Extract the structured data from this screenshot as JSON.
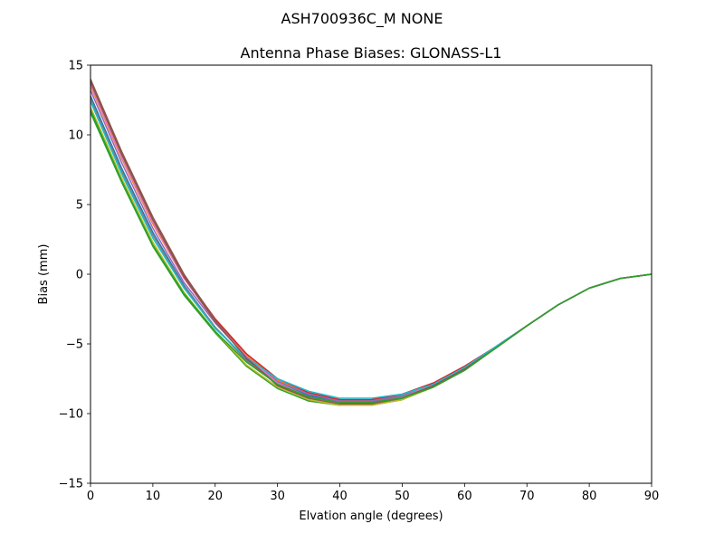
{
  "suptitle": "ASH700936C_M    NONE",
  "chart_data": {
    "type": "line",
    "title": "Antenna Phase Biases: GLONASS-L1",
    "xlabel": "Elvation angle (degrees)",
    "ylabel": "Bias (mm)",
    "xlim": [
      0,
      90
    ],
    "ylim": [
      -15,
      15
    ],
    "xticks": [
      0,
      10,
      20,
      30,
      40,
      50,
      60,
      70,
      80,
      90
    ],
    "yticks": [
      -15,
      -10,
      -5,
      0,
      5,
      10,
      15
    ],
    "xtick_labels": [
      "0",
      "10",
      "20",
      "30",
      "40",
      "50",
      "60",
      "70",
      "80",
      "90"
    ],
    "ytick_labels": [
      "−15",
      "−10",
      "−5",
      "0",
      "5",
      "10",
      "15"
    ],
    "grid": false,
    "x": [
      0,
      5,
      10,
      15,
      20,
      25,
      30,
      35,
      40,
      45,
      50,
      55,
      60,
      65,
      70,
      75,
      80,
      85,
      90
    ],
    "series": [
      {
        "color": "#1f77b4",
        "values": [
          12.8,
          7.6,
          3.0,
          -0.8,
          -3.8,
          -6.1,
          -7.8,
          -8.7,
          -9.1,
          -9.1,
          -8.8,
          -8.0,
          -6.8,
          -5.3,
          -3.7,
          -2.2,
          -1.0,
          -0.3,
          0.0
        ]
      },
      {
        "color": "#ff7f0e",
        "values": [
          13.5,
          8.3,
          3.6,
          -0.3,
          -3.3,
          -5.8,
          -7.6,
          -8.6,
          -9.0,
          -9.0,
          -8.7,
          -7.9,
          -6.7,
          -5.2,
          -3.7,
          -2.2,
          -1.0,
          -0.3,
          0.0
        ]
      },
      {
        "color": "#2ca02c",
        "values": [
          11.6,
          6.6,
          2.0,
          -1.5,
          -4.2,
          -6.6,
          -8.2,
          -9.1,
          -9.4,
          -9.4,
          -9.0,
          -8.1,
          -6.9,
          -5.3,
          -3.7,
          -2.2,
          -1.0,
          -0.3,
          0.0
        ]
      },
      {
        "color": "#d62728",
        "values": [
          13.9,
          8.7,
          3.9,
          -0.1,
          -3.2,
          -5.7,
          -7.5,
          -8.5,
          -9.0,
          -9.0,
          -8.6,
          -7.8,
          -6.6,
          -5.2,
          -3.7,
          -2.2,
          -1.0,
          -0.3,
          0.0
        ]
      },
      {
        "color": "#9467bd",
        "values": [
          13.2,
          8.0,
          3.3,
          -0.6,
          -3.5,
          -5.9,
          -7.7,
          -8.6,
          -9.1,
          -9.1,
          -8.7,
          -7.9,
          -6.7,
          -5.2,
          -3.7,
          -2.2,
          -1.0,
          -0.3,
          0.0
        ]
      },
      {
        "color": "#8c564b",
        "values": [
          14.0,
          8.8,
          4.1,
          0.0,
          -3.3,
          -5.9,
          -8.0,
          -9.0,
          -9.4,
          -9.4,
          -9.0,
          -8.0,
          -6.8,
          -5.3,
          -3.7,
          -2.2,
          -1.0,
          -0.3,
          0.0
        ]
      },
      {
        "color": "#e377c2",
        "values": [
          13.6,
          8.4,
          3.7,
          -0.3,
          -3.4,
          -5.9,
          -7.8,
          -8.8,
          -9.2,
          -9.3,
          -8.8,
          -7.9,
          -6.7,
          -5.2,
          -3.7,
          -2.2,
          -1.0,
          -0.3,
          0.0
        ]
      },
      {
        "color": "#7f7f7f",
        "values": [
          12.6,
          7.4,
          2.8,
          -0.9,
          -3.8,
          -6.2,
          -7.9,
          -8.8,
          -9.2,
          -9.2,
          -8.8,
          -8.0,
          -6.8,
          -5.3,
          -3.7,
          -2.2,
          -1.0,
          -0.3,
          0.0
        ]
      },
      {
        "color": "#bcbd22",
        "values": [
          12.0,
          6.9,
          2.3,
          -1.3,
          -4.1,
          -6.5,
          -8.1,
          -9.0,
          -9.4,
          -9.4,
          -9.0,
          -8.1,
          -6.9,
          -5.3,
          -3.7,
          -2.2,
          -1.0,
          -0.3,
          0.0
        ]
      },
      {
        "color": "#17becf",
        "values": [
          12.4,
          7.2,
          2.6,
          -1.0,
          -3.9,
          -6.0,
          -7.5,
          -8.4,
          -8.9,
          -8.9,
          -8.6,
          -7.9,
          -6.7,
          -5.2,
          -3.7,
          -2.2,
          -1.0,
          -0.3,
          0.0
        ]
      },
      {
        "color": "#8c564b",
        "values": [
          13.8,
          8.6,
          3.9,
          -0.2,
          -3.4,
          -6.0,
          -8.0,
          -8.9,
          -9.3,
          -9.3,
          -8.9,
          -8.0,
          -6.8,
          -5.3,
          -3.7,
          -2.2,
          -1.0,
          -0.3,
          0.0
        ]
      },
      {
        "color": "#2ca02c",
        "values": [
          11.8,
          6.7,
          2.1,
          -1.4,
          -4.1,
          -6.3,
          -7.9,
          -8.8,
          -9.2,
          -9.2,
          -8.9,
          -8.1,
          -6.9,
          -5.3,
          -3.7,
          -2.2,
          -1.0,
          -0.3,
          0.0
        ]
      }
    ]
  }
}
